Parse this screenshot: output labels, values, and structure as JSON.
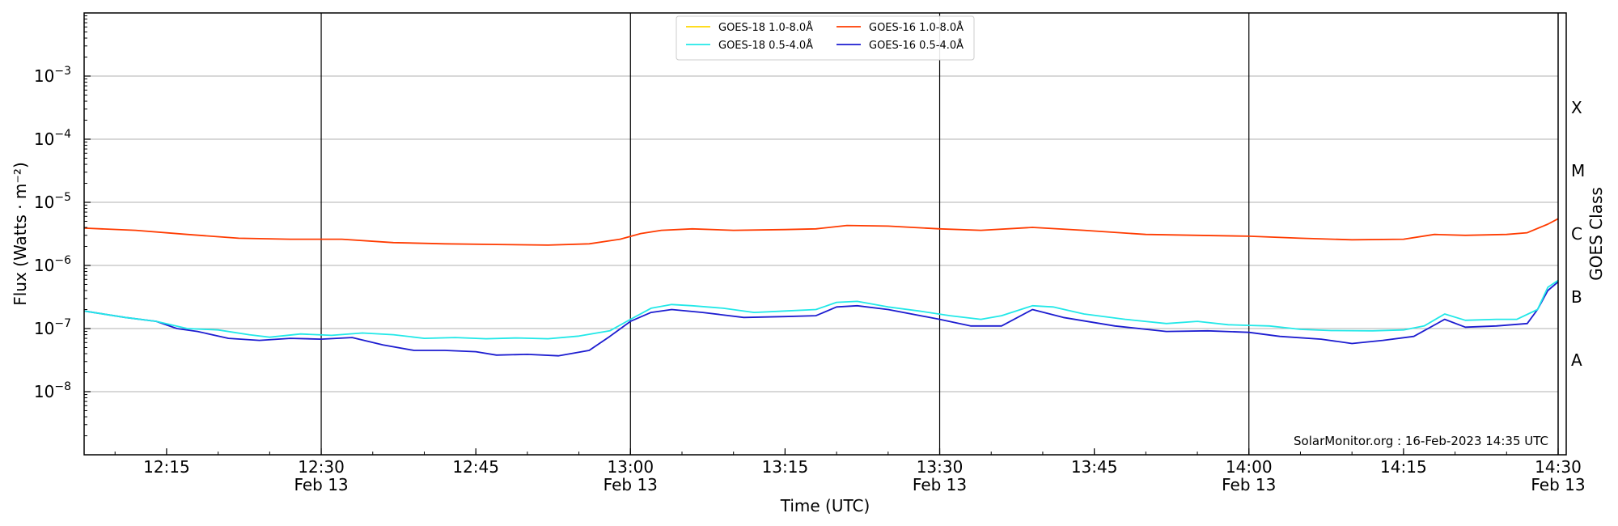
{
  "chart_data": {
    "type": "line",
    "xlabel": "Time (UTC)",
    "ylabel": "Flux (Watts · m⁻²)",
    "ylabel_right": "GOES Class",
    "credit": "SolarMonitor.org : 16-Feb-2023 14:35 UTC",
    "x_range": [
      "2023-02-13T12:07",
      "2023-02-13T14:30"
    ],
    "ylim": [
      1e-09,
      0.01
    ],
    "y_scale": "log",
    "grid": "horizontal at decades; vertical lines every 30 minutes",
    "legend_position": "top-center",
    "x_ticks": [
      {
        "t": "12:15",
        "line1": "12:15",
        "line2": ""
      },
      {
        "t": "12:30",
        "line1": "12:30",
        "line2": "Feb 13"
      },
      {
        "t": "12:45",
        "line1": "12:45",
        "line2": ""
      },
      {
        "t": "13:00",
        "line1": "13:00",
        "line2": "Feb 13"
      },
      {
        "t": "13:15",
        "line1": "13:15",
        "line2": ""
      },
      {
        "t": "13:30",
        "line1": "13:30",
        "line2": "Feb 13"
      },
      {
        "t": "13:45",
        "line1": "13:45",
        "line2": ""
      },
      {
        "t": "14:00",
        "line1": "14:00",
        "line2": "Feb 13"
      },
      {
        "t": "14:15",
        "line1": "14:15",
        "line2": ""
      },
      {
        "t": "14:30",
        "line1": "14:30",
        "line2": "Feb 13"
      }
    ],
    "y_ticks": [
      {
        "value": 1e-08,
        "base": "10",
        "exp": "−8"
      },
      {
        "value": 1e-07,
        "base": "10",
        "exp": "−7"
      },
      {
        "value": 1e-06,
        "base": "10",
        "exp": "−6"
      },
      {
        "value": 1e-05,
        "base": "10",
        "exp": "−5"
      },
      {
        "value": 0.0001,
        "base": "10",
        "exp": "−4"
      },
      {
        "value": 0.001,
        "base": "10",
        "exp": "−3"
      }
    ],
    "goes_classes": [
      {
        "label": "A",
        "value": 3.16e-08
      },
      {
        "label": "B",
        "value": 3.16e-07
      },
      {
        "label": "C",
        "value": 3.16e-06
      },
      {
        "label": "M",
        "value": 3.16e-05
      },
      {
        "label": "X",
        "value": 0.000316
      }
    ],
    "series": [
      {
        "name": "GOES-18 1.0-8.0Å",
        "color": "#ffd700",
        "points": []
      },
      {
        "name": "GOES-18 0.5-4.0Å",
        "color": "#22e8e8",
        "points": [
          [
            "12:07",
            1.9e-07
          ],
          [
            "12:11",
            1.5e-07
          ],
          [
            "12:14",
            1.3e-07
          ],
          [
            "12:17",
            1e-07
          ],
          [
            "12:20",
            9.5e-08
          ],
          [
            "12:23",
            8e-08
          ],
          [
            "12:25",
            7.3e-08
          ],
          [
            "12:28",
            8.2e-08
          ],
          [
            "12:31",
            7.8e-08
          ],
          [
            "12:34",
            8.5e-08
          ],
          [
            "12:37",
            8e-08
          ],
          [
            "12:40",
            7e-08
          ],
          [
            "12:43",
            7.2e-08
          ],
          [
            "12:46",
            6.9e-08
          ],
          [
            "12:49",
            7.1e-08
          ],
          [
            "12:52",
            6.9e-08
          ],
          [
            "12:55",
            7.6e-08
          ],
          [
            "12:58",
            9.2e-08
          ],
          [
            "13:00",
            1.4e-07
          ],
          [
            "13:02",
            2.1e-07
          ],
          [
            "13:04",
            2.4e-07
          ],
          [
            "13:06",
            2.3e-07
          ],
          [
            "13:09",
            2.1e-07
          ],
          [
            "13:12",
            1.8e-07
          ],
          [
            "13:15",
            1.9e-07
          ],
          [
            "13:18",
            2e-07
          ],
          [
            "13:20",
            2.6e-07
          ],
          [
            "13:22",
            2.7e-07
          ],
          [
            "13:25",
            2.2e-07
          ],
          [
            "13:28",
            1.9e-07
          ],
          [
            "13:31",
            1.6e-07
          ],
          [
            "13:34",
            1.4e-07
          ],
          [
            "13:36",
            1.6e-07
          ],
          [
            "13:39",
            2.3e-07
          ],
          [
            "13:41",
            2.2e-07
          ],
          [
            "13:44",
            1.7e-07
          ],
          [
            "13:48",
            1.4e-07
          ],
          [
            "13:52",
            1.2e-07
          ],
          [
            "13:55",
            1.3e-07
          ],
          [
            "13:58",
            1.15e-07
          ],
          [
            "14:02",
            1.1e-07
          ],
          [
            "14:05",
            9.7e-08
          ],
          [
            "14:08",
            9.3e-08
          ],
          [
            "14:12",
            9.2e-08
          ],
          [
            "14:15",
            9.5e-08
          ],
          [
            "14:17",
            1.1e-07
          ],
          [
            "14:19",
            1.7e-07
          ],
          [
            "14:21",
            1.35e-07
          ],
          [
            "14:24",
            1.4e-07
          ],
          [
            "14:26",
            1.4e-07
          ],
          [
            "14:28",
            2e-07
          ],
          [
            "14:29",
            4.5e-07
          ],
          [
            "14:30",
            5.8e-07
          ]
        ]
      },
      {
        "name": "GOES-16 1.0-8.0Å",
        "color": "#ff3b00",
        "points": [
          [
            "12:07",
            3.9e-06
          ],
          [
            "12:12",
            3.6e-06
          ],
          [
            "12:17",
            3.1e-06
          ],
          [
            "12:22",
            2.7e-06
          ],
          [
            "12:27",
            2.6e-06
          ],
          [
            "12:32",
            2.6e-06
          ],
          [
            "12:37",
            2.3e-06
          ],
          [
            "12:42",
            2.2e-06
          ],
          [
            "12:47",
            2.15e-06
          ],
          [
            "12:52",
            2.1e-06
          ],
          [
            "12:56",
            2.2e-06
          ],
          [
            "12:59",
            2.6e-06
          ],
          [
            "13:01",
            3.2e-06
          ],
          [
            "13:03",
            3.6e-06
          ],
          [
            "13:06",
            3.8e-06
          ],
          [
            "13:10",
            3.6e-06
          ],
          [
            "13:15",
            3.7e-06
          ],
          [
            "13:18",
            3.8e-06
          ],
          [
            "13:21",
            4.3e-06
          ],
          [
            "13:25",
            4.2e-06
          ],
          [
            "13:30",
            3.8e-06
          ],
          [
            "13:34",
            3.6e-06
          ],
          [
            "13:39",
            4e-06
          ],
          [
            "13:44",
            3.6e-06
          ],
          [
            "13:50",
            3.1e-06
          ],
          [
            "13:55",
            3e-06
          ],
          [
            "14:00",
            2.9e-06
          ],
          [
            "14:05",
            2.7e-06
          ],
          [
            "14:10",
            2.55e-06
          ],
          [
            "14:15",
            2.6e-06
          ],
          [
            "14:18",
            3.1e-06
          ],
          [
            "14:21",
            3e-06
          ],
          [
            "14:25",
            3.1e-06
          ],
          [
            "14:27",
            3.3e-06
          ],
          [
            "14:29",
            4.5e-06
          ],
          [
            "14:30",
            5.5e-06
          ]
        ]
      },
      {
        "name": "GOES-16 0.5-4.0Å",
        "color": "#1c1cd0",
        "points": [
          [
            "12:07",
            1.9e-07
          ],
          [
            "12:11",
            1.5e-07
          ],
          [
            "12:14",
            1.3e-07
          ],
          [
            "12:16",
            1e-07
          ],
          [
            "12:18",
            9e-08
          ],
          [
            "12:21",
            7e-08
          ],
          [
            "12:24",
            6.5e-08
          ],
          [
            "12:27",
            7e-08
          ],
          [
            "12:30",
            6.8e-08
          ],
          [
            "12:33",
            7.2e-08
          ],
          [
            "12:36",
            5.5e-08
          ],
          [
            "12:39",
            4.5e-08
          ],
          [
            "12:42",
            4.5e-08
          ],
          [
            "12:45",
            4.3e-08
          ],
          [
            "12:47",
            3.8e-08
          ],
          [
            "12:50",
            3.9e-08
          ],
          [
            "12:53",
            3.7e-08
          ],
          [
            "12:56",
            4.5e-08
          ],
          [
            "12:58",
            7.5e-08
          ],
          [
            "13:00",
            1.3e-07
          ],
          [
            "13:02",
            1.8e-07
          ],
          [
            "13:04",
            2e-07
          ],
          [
            "13:07",
            1.8e-07
          ],
          [
            "13:11",
            1.5e-07
          ],
          [
            "13:15",
            1.55e-07
          ],
          [
            "13:18",
            1.6e-07
          ],
          [
            "13:20",
            2.2e-07
          ],
          [
            "13:22",
            2.3e-07
          ],
          [
            "13:25",
            2e-07
          ],
          [
            "13:30",
            1.4e-07
          ],
          [
            "13:33",
            1.1e-07
          ],
          [
            "13:36",
            1.1e-07
          ],
          [
            "13:39",
            2e-07
          ],
          [
            "13:42",
            1.5e-07
          ],
          [
            "13:47",
            1.1e-07
          ],
          [
            "13:52",
            9e-08
          ],
          [
            "13:56",
            9.2e-08
          ],
          [
            "14:00",
            8.7e-08
          ],
          [
            "14:03",
            7.5e-08
          ],
          [
            "14:07",
            6.8e-08
          ],
          [
            "14:10",
            5.8e-08
          ],
          [
            "14:13",
            6.5e-08
          ],
          [
            "14:16",
            7.5e-08
          ],
          [
            "14:19",
            1.4e-07
          ],
          [
            "14:21",
            1.05e-07
          ],
          [
            "14:24",
            1.1e-07
          ],
          [
            "14:27",
            1.2e-07
          ],
          [
            "14:28",
            2e-07
          ],
          [
            "14:29",
            4e-07
          ],
          [
            "14:30",
            5.5e-07
          ]
        ]
      }
    ]
  }
}
